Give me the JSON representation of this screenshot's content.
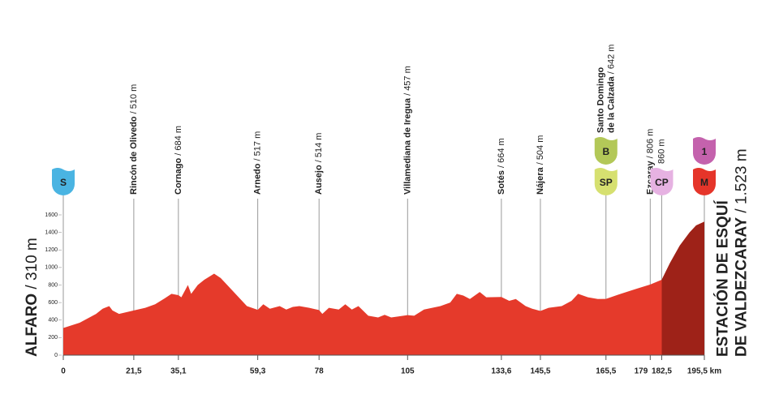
{
  "chart_data": {
    "type": "area",
    "x": [
      0,
      5,
      10,
      12,
      14,
      15,
      17,
      21.5,
      25,
      28,
      31,
      33,
      35.1,
      36,
      38,
      39,
      41,
      43,
      46,
      48,
      50,
      53,
      56,
      59.3,
      61,
      63,
      66,
      68,
      70,
      72,
      75,
      78,
      79,
      81,
      84,
      86,
      88,
      90,
      93,
      96,
      98,
      100,
      102,
      105,
      107,
      110,
      115,
      118,
      120,
      122,
      124,
      127,
      129,
      133.6,
      136,
      138,
      141,
      143,
      145.5,
      148,
      152,
      155,
      157,
      160,
      163,
      165.5,
      170,
      175,
      179,
      182.5,
      185,
      188,
      191,
      193,
      195.5
    ],
    "values": [
      310,
      370,
      470,
      530,
      560,
      510,
      470,
      510,
      540,
      580,
      650,
      700,
      684,
      660,
      800,
      700,
      800,
      860,
      930,
      880,
      800,
      680,
      560,
      517,
      580,
      530,
      560,
      520,
      550,
      560,
      540,
      514,
      470,
      540,
      520,
      580,
      520,
      560,
      450,
      430,
      460,
      430,
      440,
      457,
      450,
      520,
      560,
      600,
      700,
      680,
      640,
      720,
      660,
      664,
      620,
      640,
      560,
      530,
      504,
      540,
      560,
      620,
      700,
      660,
      640,
      642,
      700,
      760,
      806,
      860,
      1050,
      1250,
      1400,
      1480,
      1523
    ],
    "color": "#e53a2b",
    "climb_color": "#9e2218",
    "xlim": [
      0,
      195.5
    ],
    "xticks": [
      0,
      {
        "value": 21.5,
        "label": "21,5"
      },
      {
        "value": 35.1,
        "label": "35,1"
      },
      {
        "value": 59.3,
        "label": "59,3"
      },
      78,
      105,
      {
        "value": 133.6,
        "label": "133,6"
      },
      {
        "value": 145.5,
        "label": "145,5"
      },
      {
        "value": 165.5,
        "label": "165,5"
      },
      179,
      {
        "value": 182.5,
        "label": "182,5"
      },
      {
        "value": 195.5,
        "label": "195,5 km"
      }
    ],
    "ylim": [
      0,
      1600
    ],
    "yticks": [
      0,
      200,
      400,
      600,
      800,
      1000,
      1200,
      1400,
      1600
    ],
    "start": {
      "name": [
        "ALFARO"
      ],
      "altitude": "/ 310 m"
    },
    "finish": {
      "name": [
        "ESTACIÓN DE ESQUÍ",
        "DE VALDEZCARAY"
      ],
      "altitude": "/ 1.523 m"
    },
    "waypoints": [
      {
        "km": 0,
        "badges": [
          {
            "text": "S",
            "color": "#4ab4e2"
          }
        ]
      },
      {
        "km": 21.5,
        "name": [
          "Rincón de Olivedo"
        ],
        "altitude": "/ 510 m"
      },
      {
        "km": 35.1,
        "name": [
          "Cornago"
        ],
        "altitude": "/ 684 m"
      },
      {
        "km": 59.3,
        "name": [
          "Arnedo"
        ],
        "altitude": "/ 517 m"
      },
      {
        "km": 78,
        "name": [
          "Ausejo"
        ],
        "altitude": "/ 514 m"
      },
      {
        "km": 105,
        "name": [
          "Villamediana de Iregua"
        ],
        "altitude": "/ 457 m"
      },
      {
        "km": 133.6,
        "name": [
          "Sotés"
        ],
        "altitude": "/ 664 m"
      },
      {
        "km": 145.5,
        "name": [
          "Nájera"
        ],
        "altitude": "/ 504 m"
      },
      {
        "km": 165.5,
        "name": [
          "Santo Domingo",
          "de la Calzada"
        ],
        "altitude": "/ 642 m",
        "badges": [
          {
            "text": "B",
            "color": "#b3c858"
          },
          {
            "text": "SP",
            "color": "#d6e070"
          }
        ]
      },
      {
        "km": 179,
        "name": [
          "Ezcaray"
        ],
        "altitude": "/ 806 m"
      },
      {
        "km": 182.5,
        "altitude": "860 m",
        "badges": [
          {
            "text": "CP",
            "color": "#e6b2e2"
          }
        ]
      },
      {
        "km": 195.5,
        "badges": [
          {
            "text": "1",
            "color": "#c462ad"
          },
          {
            "text": "M",
            "color": "#e5352a"
          }
        ]
      }
    ]
  }
}
